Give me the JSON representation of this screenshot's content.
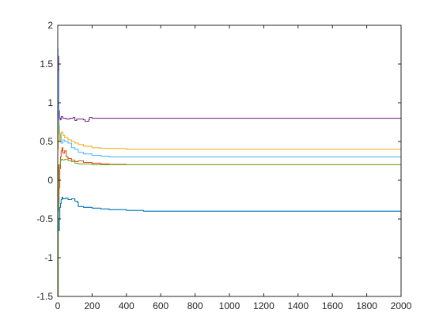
{
  "chart_data": {
    "type": "line",
    "title": "",
    "xlabel": "",
    "ylabel": "",
    "xlim": [
      0,
      2000
    ],
    "ylim": [
      -1.5,
      2
    ],
    "xticks": [
      0,
      200,
      400,
      600,
      800,
      1000,
      1200,
      1400,
      1600,
      1800,
      2000
    ],
    "yticks": [
      -1.5,
      -1,
      -0.5,
      0,
      0.5,
      1,
      1.5,
      2
    ],
    "xtick_labels": [
      "0",
      "200",
      "400",
      "600",
      "800",
      "1000",
      "1200",
      "1400",
      "1600",
      "1800",
      "2000"
    ],
    "ytick_labels": [
      "-1.5",
      "-1",
      "-0.5",
      "0",
      "0.5",
      "1",
      "1.5",
      "2"
    ],
    "grid": false,
    "legend": false,
    "series": [
      {
        "color": "#0072BD",
        "x": [
          0,
          3,
          6,
          9,
          12,
          16,
          20,
          25,
          30,
          45,
          60,
          80,
          100,
          115,
          120,
          150,
          200,
          250,
          300,
          400,
          500,
          2000
        ],
        "y": [
          0.2,
          -0.6,
          -0.65,
          -0.5,
          -0.35,
          -0.3,
          -0.25,
          -0.22,
          -0.24,
          -0.23,
          -0.25,
          -0.24,
          -0.27,
          -0.29,
          -0.34,
          -0.35,
          -0.36,
          -0.37,
          -0.38,
          -0.39,
          -0.4,
          -0.4
        ]
      },
      {
        "color": "#D95319",
        "x": [
          0,
          4,
          8,
          12,
          16,
          20,
          25,
          30,
          40,
          50,
          60,
          80,
          100,
          120,
          150,
          200,
          250,
          300,
          400,
          2000
        ],
        "y": [
          0.2,
          -0.3,
          -0.1,
          0.15,
          0.3,
          0.38,
          0.42,
          0.35,
          0.38,
          0.3,
          0.28,
          0.26,
          0.24,
          0.25,
          0.23,
          0.22,
          0.21,
          0.205,
          0.2,
          0.2
        ]
      },
      {
        "color": "#EDB120",
        "x": [
          0,
          4,
          8,
          12,
          16,
          20,
          30,
          40,
          60,
          80,
          100,
          120,
          150,
          200,
          250,
          300,
          400,
          500,
          2000
        ],
        "y": [
          0.4,
          0.9,
          0.6,
          0.5,
          0.55,
          0.62,
          0.58,
          0.55,
          0.52,
          0.5,
          0.48,
          0.46,
          0.44,
          0.42,
          0.41,
          0.41,
          0.4,
          0.4,
          0.4
        ]
      },
      {
        "color": "#7E2F8E",
        "x": [
          0,
          3,
          6,
          10,
          15,
          20,
          30,
          50,
          70,
          90,
          100,
          110,
          150,
          160,
          180,
          185,
          200,
          300,
          400,
          2000
        ],
        "y": [
          0.8,
          1.6,
          0.9,
          0.8,
          0.78,
          0.82,
          0.8,
          0.79,
          0.8,
          0.81,
          0.77,
          0.79,
          0.78,
          0.76,
          0.78,
          0.81,
          0.8,
          0.8,
          0.8,
          0.8
        ]
      },
      {
        "color": "#77AC30",
        "x": [
          0,
          3,
          6,
          10,
          15,
          20,
          30,
          40,
          60,
          80,
          100,
          120,
          150,
          200,
          250,
          300,
          2000
        ],
        "y": [
          -1.5,
          -0.4,
          0.0,
          0.2,
          0.25,
          0.27,
          0.26,
          0.27,
          0.25,
          0.24,
          0.22,
          0.21,
          0.21,
          0.2,
          0.2,
          0.2,
          0.2
        ]
      },
      {
        "color": "#4DBEEE",
        "x": [
          0,
          2,
          4,
          7,
          10,
          15,
          20,
          30,
          40,
          60,
          80,
          100,
          120,
          150,
          200,
          250,
          300,
          400,
          2000
        ],
        "y": [
          1.7,
          1.4,
          0.9,
          0.7,
          0.6,
          0.55,
          0.48,
          0.52,
          0.5,
          0.48,
          0.42,
          0.4,
          0.36,
          0.34,
          0.32,
          0.31,
          0.3,
          0.3,
          0.3
        ]
      }
    ]
  }
}
